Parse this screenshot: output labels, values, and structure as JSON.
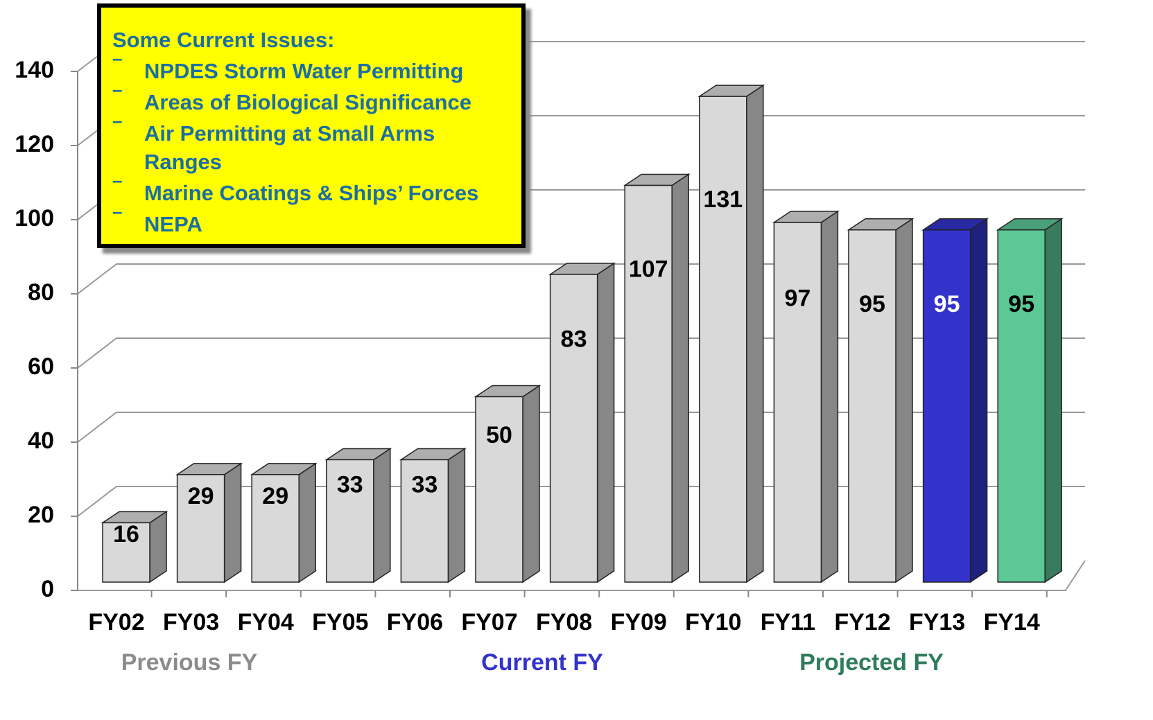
{
  "chart_data": {
    "type": "bar3d",
    "categories": [
      "FY02",
      "FY03",
      "FY04",
      "FY05",
      "FY06",
      "FY07",
      "FY08",
      "FY09",
      "FY10",
      "FY11",
      "FY12",
      "FY13",
      "FY14"
    ],
    "values": [
      16,
      29,
      29,
      33,
      33,
      50,
      83,
      107,
      131,
      97,
      95,
      95,
      95
    ],
    "colors": [
      "#d9d9d9",
      "#d9d9d9",
      "#d9d9d9",
      "#d9d9d9",
      "#d9d9d9",
      "#d9d9d9",
      "#d9d9d9",
      "#d9d9d9",
      "#d9d9d9",
      "#d9d9d9",
      "#d9d9d9",
      "#3333cc",
      "#5cc896"
    ],
    "value_label_colors": [
      "#000000",
      "#000000",
      "#000000",
      "#000000",
      "#000000",
      "#000000",
      "#000000",
      "#000000",
      "#000000",
      "#000000",
      "#000000",
      "#ffffff",
      "#000000"
    ],
    "ylim": [
      0,
      140
    ],
    "yticks": [
      0,
      20,
      40,
      60,
      80,
      100,
      120,
      140
    ],
    "grid": true,
    "groups": [
      {
        "label": "Previous FY",
        "color": "#8c8c8c"
      },
      {
        "label": "Current FY",
        "color": "#3333cc"
      },
      {
        "label": "Projected FY",
        "color": "#2e7d5a"
      }
    ],
    "annotation": {
      "title": "Some Current Issues:",
      "items": [
        "NPDES Storm Water Permitting",
        "Areas of Biological Significance",
        "Air Permitting at Small Arms Ranges",
        "Marine Coatings & Ships’ Forces",
        "NEPA"
      ]
    }
  }
}
